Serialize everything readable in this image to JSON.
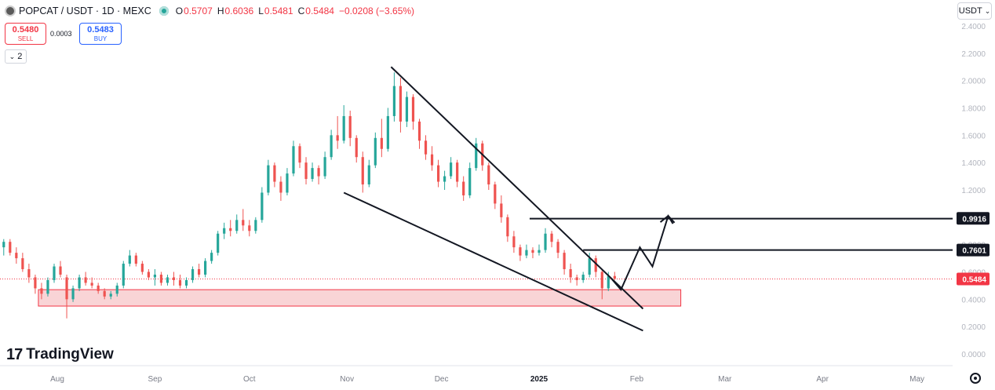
{
  "header": {
    "symbol": "POPCAT / USDT · 1D · MEXC",
    "open_label": "O",
    "open": "0.5707",
    "high_label": "H",
    "high": "0.6036",
    "low_label": "L",
    "low": "0.5481",
    "close_label": "C",
    "close": "0.5484",
    "change": "−0.0208 (−3.65%)"
  },
  "trade": {
    "sell_price": "0.5480",
    "sell_label": "SELL",
    "spread": "0.0003",
    "buy_price": "0.5483",
    "buy_label": "BUY"
  },
  "indicators_count": "2",
  "currency": "USDT",
  "branding": {
    "name": "TradingView",
    "mark": "17"
  },
  "colors": {
    "up": "#26a69a",
    "down": "#ef5350",
    "zone_fill": "#f8c9cc",
    "zone_border": "#f23645",
    "line": "#131722",
    "price_line": "#f23645"
  },
  "chart_data": {
    "type": "candlestick",
    "title": "POPCAT / USDT · 1D · MEXC",
    "y_ticks": [
      "0.0000",
      "0.2000",
      "0.4000",
      "0.6000",
      "0.8000",
      "1.0000",
      "1.2000",
      "1.4000",
      "1.6000",
      "1.8000",
      "2.0000",
      "2.2000",
      "2.4000"
    ],
    "x_ticks": [
      "Aug",
      "Sep",
      "Oct",
      "Nov",
      "Dec",
      "2025",
      "Feb",
      "Mar",
      "Apr",
      "May"
    ],
    "ylim": [
      0,
      2.4
    ],
    "grid": false,
    "price_labels": [
      {
        "value": 0.9916,
        "text": "0.9916",
        "style": "dark"
      },
      {
        "value": 0.7601,
        "text": "0.7601",
        "style": "dark"
      },
      {
        "value": 0.5484,
        "text": "0.5484",
        "style": "red"
      }
    ],
    "current_price": 0.5484,
    "horizontal_levels": [
      {
        "value": 0.99,
        "from": "2024-12-29",
        "to": "2025-05-31"
      },
      {
        "value": 0.76,
        "from": "2025-01-15",
        "to": "2025-05-31"
      }
    ],
    "demand_zone": {
      "from": "2024-07-26",
      "to": "2025-02-15",
      "low": 0.35,
      "high": 0.47
    },
    "trendlines": [
      {
        "from": {
          "date": "2024-11-15",
          "value": 2.1
        },
        "to": {
          "date": "2025-02-03",
          "value": 0.33
        }
      },
      {
        "from": {
          "date": "2024-10-31",
          "value": 1.18
        },
        "to": {
          "date": "2025-02-03",
          "value": 0.17
        }
      }
    ],
    "projection_path": [
      {
        "date": "2025-01-24",
        "value": 0.55
      },
      {
        "date": "2025-01-27",
        "value": 0.47
      },
      {
        "date": "2025-02-02",
        "value": 0.78
      },
      {
        "date": "2025-02-06",
        "value": 0.64
      },
      {
        "date": "2025-02-11",
        "value": 1.01
      },
      {
        "date": "2025-02-13",
        "value": 0.96
      }
    ],
    "candles": [
      [
        "2024-07-01",
        0.58,
        0.64,
        0.56,
        0.62
      ],
      [
        "2024-07-03",
        0.62,
        0.74,
        0.6,
        0.72
      ],
      [
        "2024-07-05",
        0.72,
        0.86,
        0.7,
        0.84
      ],
      [
        "2024-07-07",
        0.84,
        0.9,
        0.78,
        0.8
      ],
      [
        "2024-07-09",
        0.8,
        0.94,
        0.78,
        0.92
      ],
      [
        "2024-07-11",
        0.92,
        0.96,
        0.84,
        0.86
      ],
      [
        "2024-07-13",
        0.86,
        0.88,
        0.76,
        0.78
      ],
      [
        "2024-07-15",
        0.78,
        0.84,
        0.72,
        0.82
      ],
      [
        "2024-07-17",
        0.82,
        0.84,
        0.72,
        0.74
      ],
      [
        "2024-07-19",
        0.74,
        0.78,
        0.66,
        0.7
      ],
      [
        "2024-07-21",
        0.7,
        0.74,
        0.6,
        0.62
      ],
      [
        "2024-07-23",
        0.62,
        0.66,
        0.52,
        0.56
      ],
      [
        "2024-07-25",
        0.56,
        0.58,
        0.44,
        0.48
      ],
      [
        "2024-07-27",
        0.48,
        0.52,
        0.4,
        0.44
      ],
      [
        "2024-07-29",
        0.44,
        0.56,
        0.42,
        0.54
      ],
      [
        "2024-07-31",
        0.54,
        0.66,
        0.52,
        0.64
      ],
      [
        "2024-08-02",
        0.64,
        0.68,
        0.56,
        0.58
      ],
      [
        "2024-08-04",
        0.56,
        0.58,
        0.26,
        0.4
      ],
      [
        "2024-08-06",
        0.4,
        0.5,
        0.38,
        0.48
      ],
      [
        "2024-08-08",
        0.48,
        0.58,
        0.46,
        0.56
      ],
      [
        "2024-08-10",
        0.56,
        0.6,
        0.5,
        0.52
      ],
      [
        "2024-08-12",
        0.52,
        0.56,
        0.48,
        0.5
      ],
      [
        "2024-08-14",
        0.5,
        0.52,
        0.44,
        0.46
      ],
      [
        "2024-08-16",
        0.46,
        0.48,
        0.4,
        0.42
      ],
      [
        "2024-08-18",
        0.42,
        0.46,
        0.4,
        0.44
      ],
      [
        "2024-08-20",
        0.44,
        0.52,
        0.42,
        0.5
      ],
      [
        "2024-08-22",
        0.5,
        0.68,
        0.48,
        0.66
      ],
      [
        "2024-08-24",
        0.66,
        0.76,
        0.64,
        0.72
      ],
      [
        "2024-08-26",
        0.72,
        0.74,
        0.64,
        0.66
      ],
      [
        "2024-08-28",
        0.66,
        0.68,
        0.58,
        0.6
      ],
      [
        "2024-08-30",
        0.6,
        0.62,
        0.54,
        0.56
      ],
      [
        "2024-09-01",
        0.56,
        0.62,
        0.5,
        0.58
      ],
      [
        "2024-09-03",
        0.58,
        0.6,
        0.5,
        0.52
      ],
      [
        "2024-09-05",
        0.52,
        0.58,
        0.5,
        0.56
      ],
      [
        "2024-09-07",
        0.56,
        0.6,
        0.5,
        0.54
      ],
      [
        "2024-09-09",
        0.54,
        0.58,
        0.48,
        0.5
      ],
      [
        "2024-09-11",
        0.5,
        0.56,
        0.48,
        0.54
      ],
      [
        "2024-09-13",
        0.54,
        0.64,
        0.52,
        0.62
      ],
      [
        "2024-09-15",
        0.62,
        0.66,
        0.56,
        0.58
      ],
      [
        "2024-09-17",
        0.58,
        0.7,
        0.56,
        0.68
      ],
      [
        "2024-09-19",
        0.68,
        0.76,
        0.66,
        0.74
      ],
      [
        "2024-09-21",
        0.74,
        0.9,
        0.72,
        0.88
      ],
      [
        "2024-09-23",
        0.88,
        0.96,
        0.84,
        0.92
      ],
      [
        "2024-09-25",
        0.92,
        0.98,
        0.86,
        0.9
      ],
      [
        "2024-09-27",
        0.9,
        1.02,
        0.88,
        0.98
      ],
      [
        "2024-09-29",
        0.98,
        1.06,
        0.9,
        0.94
      ],
      [
        "2024-10-01",
        0.94,
        0.98,
        0.86,
        0.9
      ],
      [
        "2024-10-03",
        0.9,
        1.0,
        0.88,
        0.98
      ],
      [
        "2024-10-05",
        0.98,
        1.22,
        0.96,
        1.18
      ],
      [
        "2024-10-07",
        1.18,
        1.42,
        1.16,
        1.38
      ],
      [
        "2024-10-09",
        1.38,
        1.4,
        1.22,
        1.26
      ],
      [
        "2024-10-11",
        1.26,
        1.3,
        1.12,
        1.18
      ],
      [
        "2024-10-13",
        1.18,
        1.36,
        1.16,
        1.32
      ],
      [
        "2024-10-15",
        1.32,
        1.56,
        1.3,
        1.52
      ],
      [
        "2024-10-17",
        1.52,
        1.54,
        1.36,
        1.4
      ],
      [
        "2024-10-19",
        1.4,
        1.44,
        1.24,
        1.28
      ],
      [
        "2024-10-21",
        1.28,
        1.4,
        1.26,
        1.36
      ],
      [
        "2024-10-23",
        1.36,
        1.38,
        1.24,
        1.3
      ],
      [
        "2024-10-25",
        1.3,
        1.48,
        1.28,
        1.44
      ],
      [
        "2024-10-27",
        1.44,
        1.64,
        1.42,
        1.6
      ],
      [
        "2024-10-29",
        1.6,
        1.74,
        1.5,
        1.56
      ],
      [
        "2024-10-31",
        1.56,
        1.82,
        1.54,
        1.74
      ],
      [
        "2024-11-02",
        1.74,
        1.78,
        1.52,
        1.58
      ],
      [
        "2024-11-04",
        1.58,
        1.6,
        1.4,
        1.44
      ],
      [
        "2024-11-06",
        1.44,
        1.48,
        1.18,
        1.24
      ],
      [
        "2024-11-08",
        1.24,
        1.42,
        1.22,
        1.38
      ],
      [
        "2024-11-10",
        1.38,
        1.62,
        1.36,
        1.58
      ],
      [
        "2024-11-12",
        1.58,
        1.72,
        1.44,
        1.5
      ],
      [
        "2024-11-14",
        1.5,
        1.8,
        1.48,
        1.74
      ],
      [
        "2024-11-16",
        1.74,
        2.06,
        1.7,
        1.96
      ],
      [
        "2024-11-18",
        1.96,
        2.02,
        1.62,
        1.7
      ],
      [
        "2024-11-20",
        1.7,
        1.92,
        1.66,
        1.88
      ],
      [
        "2024-11-22",
        1.88,
        1.9,
        1.64,
        1.7
      ],
      [
        "2024-11-24",
        1.7,
        1.72,
        1.5,
        1.56
      ],
      [
        "2024-11-26",
        1.56,
        1.6,
        1.42,
        1.46
      ],
      [
        "2024-11-28",
        1.46,
        1.52,
        1.34,
        1.38
      ],
      [
        "2024-11-30",
        1.38,
        1.42,
        1.22,
        1.26
      ],
      [
        "2024-12-02",
        1.26,
        1.34,
        1.2,
        1.3
      ],
      [
        "2024-12-04",
        1.3,
        1.44,
        1.28,
        1.4
      ],
      [
        "2024-12-06",
        1.4,
        1.42,
        1.22,
        1.26
      ],
      [
        "2024-12-08",
        1.26,
        1.3,
        1.12,
        1.16
      ],
      [
        "2024-12-10",
        1.16,
        1.4,
        1.14,
        1.36
      ],
      [
        "2024-12-12",
        1.36,
        1.58,
        1.34,
        1.54
      ],
      [
        "2024-12-14",
        1.54,
        1.56,
        1.34,
        1.38
      ],
      [
        "2024-12-16",
        1.38,
        1.4,
        1.2,
        1.24
      ],
      [
        "2024-12-18",
        1.24,
        1.26,
        1.06,
        1.1
      ],
      [
        "2024-12-20",
        1.1,
        1.16,
        0.96,
        1.0
      ],
      [
        "2024-12-22",
        1.0,
        1.02,
        0.82,
        0.86
      ],
      [
        "2024-12-24",
        0.86,
        0.9,
        0.74,
        0.78
      ],
      [
        "2024-12-26",
        0.78,
        0.8,
        0.68,
        0.72
      ],
      [
        "2024-12-28",
        0.72,
        0.8,
        0.7,
        0.76
      ],
      [
        "2024-12-30",
        0.76,
        0.78,
        0.7,
        0.74
      ],
      [
        "2025-01-01",
        0.74,
        0.8,
        0.72,
        0.76
      ],
      [
        "2025-01-03",
        0.76,
        0.92,
        0.74,
        0.88
      ],
      [
        "2025-01-05",
        0.88,
        0.9,
        0.78,
        0.82
      ],
      [
        "2025-01-07",
        0.82,
        0.84,
        0.7,
        0.74
      ],
      [
        "2025-01-09",
        0.74,
        0.76,
        0.58,
        0.62
      ],
      [
        "2025-01-11",
        0.62,
        0.66,
        0.52,
        0.56
      ],
      [
        "2025-01-13",
        0.56,
        0.58,
        0.5,
        0.54
      ],
      [
        "2025-01-15",
        0.54,
        0.6,
        0.52,
        0.58
      ],
      [
        "2025-01-17",
        0.58,
        0.74,
        0.56,
        0.7
      ],
      [
        "2025-01-19",
        0.7,
        0.72,
        0.56,
        0.6
      ],
      [
        "2025-01-21",
        0.6,
        0.62,
        0.4,
        0.48
      ],
      [
        "2025-01-23",
        0.48,
        0.6,
        0.46,
        0.57
      ],
      [
        "2025-01-25",
        0.57,
        0.6,
        0.54,
        0.55
      ]
    ]
  }
}
